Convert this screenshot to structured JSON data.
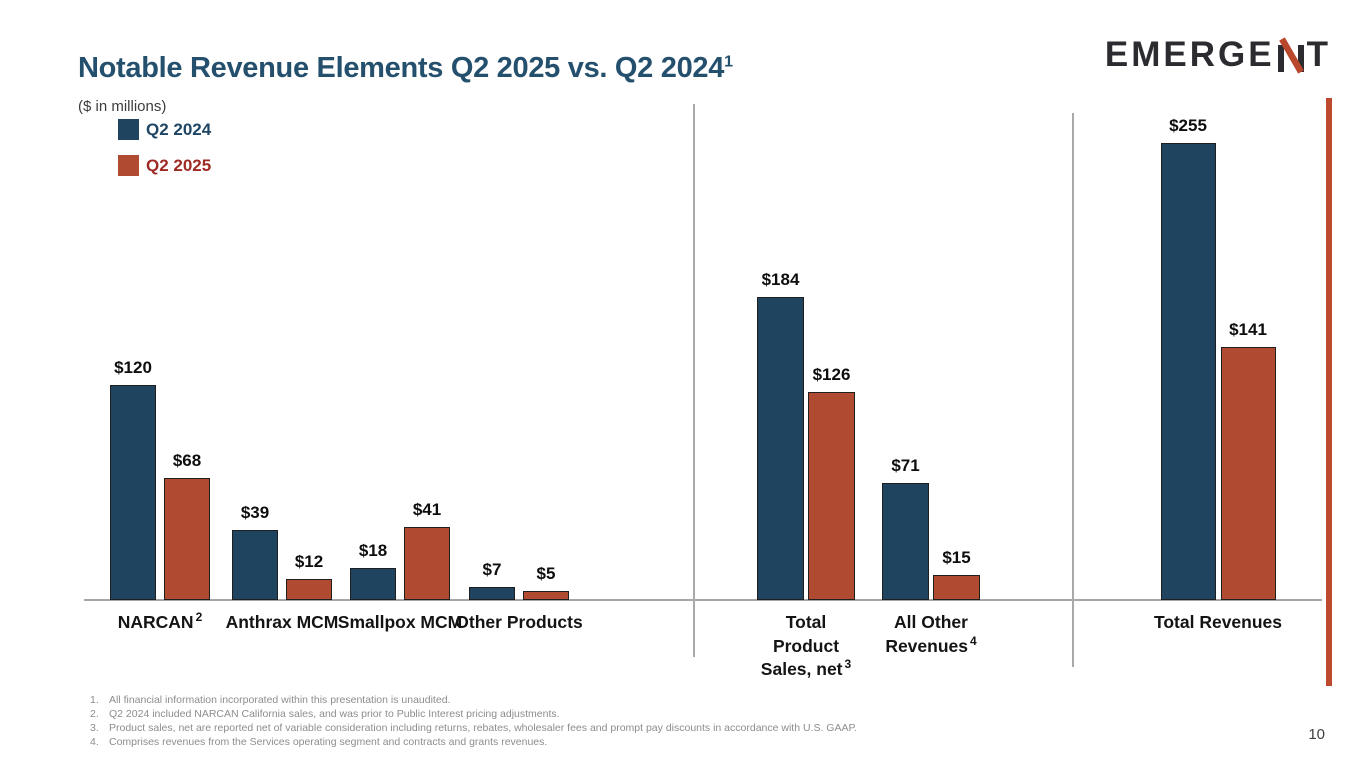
{
  "slide": {
    "title": "Notable Revenue Elements Q2 2025 vs. Q2 2024",
    "title_superscript": "1",
    "units_note": "($ in millions)",
    "logo_text": "EMERGENT",
    "page_number": "10"
  },
  "legend": {
    "items": [
      {
        "label": "Q2 2024",
        "color": "#1E4460",
        "text_color": "#1F4564"
      },
      {
        "label": "Q2 2025",
        "color": "#B04A30",
        "text_color": "#9E2A25"
      }
    ]
  },
  "chart_data": {
    "type": "bar",
    "title": "Notable Revenue Elements Q2 2025 vs. Q2 2024",
    "units": "$ in millions",
    "value_prefix": "$",
    "legend_position": "top-left",
    "grid": false,
    "series": [
      {
        "name": "Q2 2024",
        "color": "#1E4460",
        "values": [
          120,
          39,
          18,
          7,
          184,
          71,
          255
        ]
      },
      {
        "name": "Q2 2025",
        "color": "#B04A30",
        "values": [
          68,
          12,
          41,
          5,
          126,
          15,
          141
        ]
      }
    ],
    "groups": [
      {
        "label": "NARCAN",
        "superscript": "2",
        "values": [
          120,
          68
        ]
      },
      {
        "label": "Anthrax MCM",
        "values": [
          39,
          12
        ]
      },
      {
        "label": "Smallpox MCM",
        "values": [
          18,
          41
        ]
      },
      {
        "label": "Other Products",
        "values": [
          7,
          5
        ]
      },
      {
        "label": "Total Product Sales, net",
        "label_lines": [
          "Total",
          "Product",
          "Sales, net"
        ],
        "superscript": "3",
        "values": [
          184,
          126
        ]
      },
      {
        "label": "All Other Revenues",
        "label_lines": [
          "All Other",
          "Revenues"
        ],
        "superscript": "4",
        "values": [
          71,
          15
        ]
      },
      {
        "label": "Total Revenues",
        "values": [
          255,
          141
        ]
      }
    ]
  },
  "footnotes": [
    {
      "num": "1.",
      "text": "All financial information incorporated within this presentation is unaudited."
    },
    {
      "num": "2.",
      "text": "Q2 2024 included NARCAN California sales, and was prior to Public Interest pricing adjustments."
    },
    {
      "num": "3.",
      "text": "Product sales, net are reported net of variable consideration including returns, rebates, wholesaler fees and prompt pay discounts in accordance with U.S. GAAP."
    },
    {
      "num": "4.",
      "text": "Comprises revenues from the Services operating segment and contracts and grants revenues."
    }
  ]
}
